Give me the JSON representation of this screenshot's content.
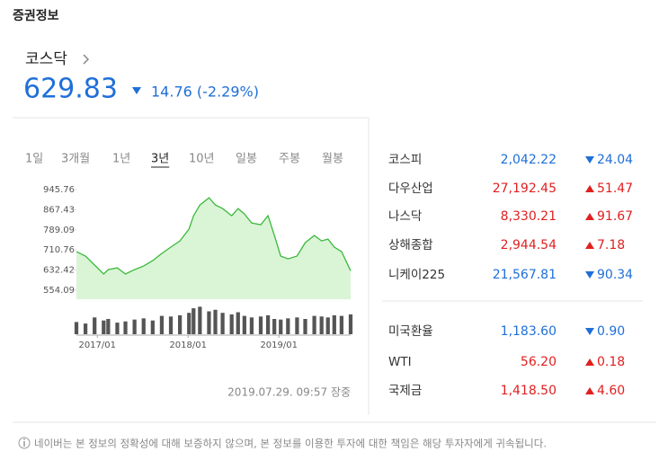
{
  "header": {
    "title": "증권정보"
  },
  "main_index": {
    "name": "코스닥",
    "value": "629.83",
    "direction": "down",
    "change": "14.76 (-2.29%)"
  },
  "tabs": {
    "items": [
      "1일",
      "3개월",
      "1년",
      "3년",
      "10년",
      "일봉",
      "주봉",
      "월봉"
    ],
    "active": 3
  },
  "chart_data": {
    "type": "line",
    "color": "#3cb83c",
    "fill": "#d9f5d6",
    "x": [
      2016.77,
      2016.87,
      2016.97,
      2017.07,
      2017.12,
      2017.22,
      2017.31,
      2017.41,
      2017.51,
      2017.61,
      2017.71,
      2017.81,
      2017.91,
      2018.01,
      2018.06,
      2018.13,
      2018.23,
      2018.3,
      2018.38,
      2018.48,
      2018.55,
      2018.62,
      2018.7,
      2018.8,
      2018.88,
      2018.95,
      2019.02,
      2019.1,
      2019.2,
      2019.29,
      2019.39,
      2019.47,
      2019.54,
      2019.61,
      2019.69,
      2019.79
    ],
    "values": [
      704,
      687,
      652,
      617,
      634,
      641,
      617,
      634,
      648,
      669,
      697,
      722,
      746,
      792,
      844,
      886,
      914,
      886,
      872,
      844,
      872,
      851,
      816,
      809,
      844,
      767,
      687,
      676,
      687,
      739,
      767,
      746,
      753,
      722,
      704,
      630
    ],
    "volume": [
      40,
      35,
      55,
      45,
      50,
      38,
      42,
      48,
      52,
      45,
      60,
      58,
      62,
      70,
      85,
      90,
      75,
      80,
      70,
      65,
      72,
      60,
      55,
      58,
      62,
      50,
      48,
      52,
      55,
      50,
      60,
      58,
      55,
      62,
      60,
      65
    ],
    "volume_lim": [
      0,
      100
    ],
    "xlim": [
      2016.77,
      2019.79
    ],
    "xticks": [
      {
        "value": 2017.0,
        "label": "2017/01"
      },
      {
        "value": 2018.0,
        "label": "2018/01"
      },
      {
        "value": 2019.0,
        "label": "2019/01"
      }
    ],
    "ylim": [
      519,
      967
    ],
    "yticks": [
      945.76,
      867.43,
      789.09,
      710.76,
      632.42,
      554.09
    ]
  },
  "timestamp": "2019.07.29. 09:57 장중",
  "indices": {
    "rows": [
      {
        "name": "코스피",
        "value": "2,042.22",
        "direction": "down",
        "change": "24.04"
      },
      {
        "name": "다우산업",
        "value": "27,192.45",
        "direction": "up",
        "change": "51.47"
      },
      {
        "name": "나스닥",
        "value": "8,330.21",
        "direction": "up",
        "change": "91.67"
      },
      {
        "name": "상해종합",
        "value": "2,944.54",
        "direction": "up",
        "change": "7.18"
      },
      {
        "name": "니케이225",
        "value": "21,567.81",
        "direction": "down",
        "change": "90.34"
      },
      {
        "name": "미국환율",
        "value": "1,183.60",
        "direction": "down",
        "change": "0.90"
      },
      {
        "name": "WTI",
        "value": "56.20",
        "direction": "up",
        "change": "0.18"
      },
      {
        "name": "국제금",
        "value": "1,418.50",
        "direction": "up",
        "change": "4.60"
      }
    ]
  },
  "footer": {
    "disclaimer": "네이버는 본 정보의 정확성에 대해 보증하지 않으며, 본 정보를 이용한 투자에 대한 책임은 해당 투자자에게 귀속됩니다."
  }
}
